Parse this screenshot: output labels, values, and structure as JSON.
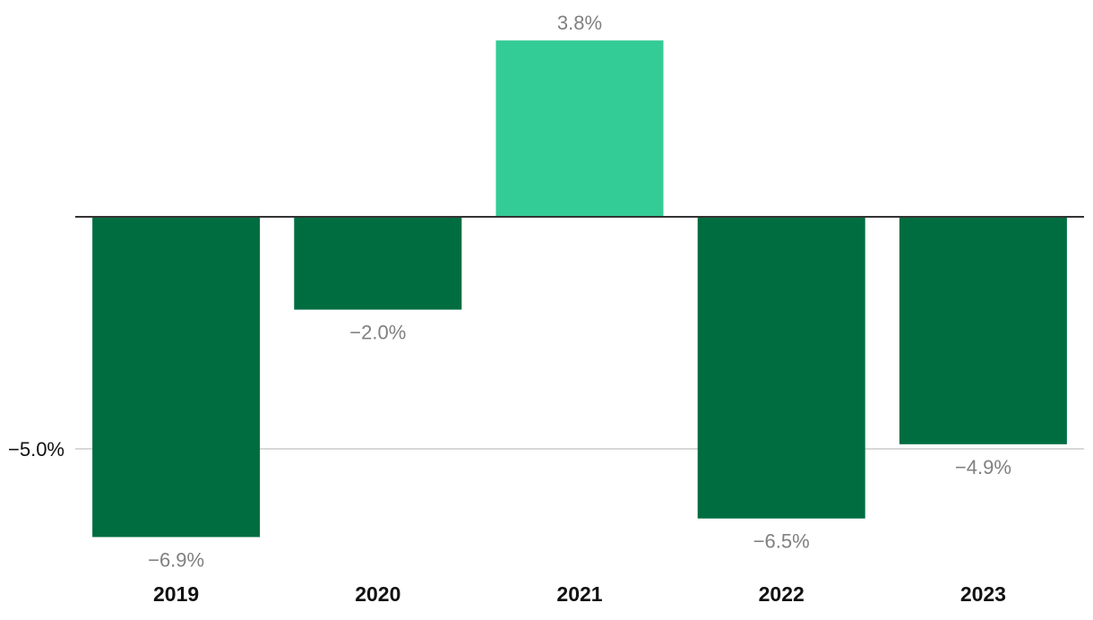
{
  "chart_data": {
    "type": "bar",
    "title": "",
    "xlabel": "",
    "ylabel": "",
    "categories": [
      "2019",
      "2020",
      "2021",
      "2022",
      "2023"
    ],
    "values": [
      -6.9,
      -2.0,
      3.8,
      -6.5,
      -4.9
    ],
    "value_labels": [
      "−6.9%",
      "−2.0%",
      "3.8%",
      "−6.5%",
      "−4.9%"
    ],
    "ylim": [
      -7.5,
      4.5
    ],
    "y_ticks": [
      -5.0
    ],
    "y_tick_labels": [
      "−5.0%"
    ],
    "grid": true,
    "colors": {
      "positive": "#33cc96",
      "negative": "#006d41",
      "gridline": "#cccccc",
      "zero_line": "#333333",
      "value_label": "#808080",
      "text": "#111111"
    }
  }
}
